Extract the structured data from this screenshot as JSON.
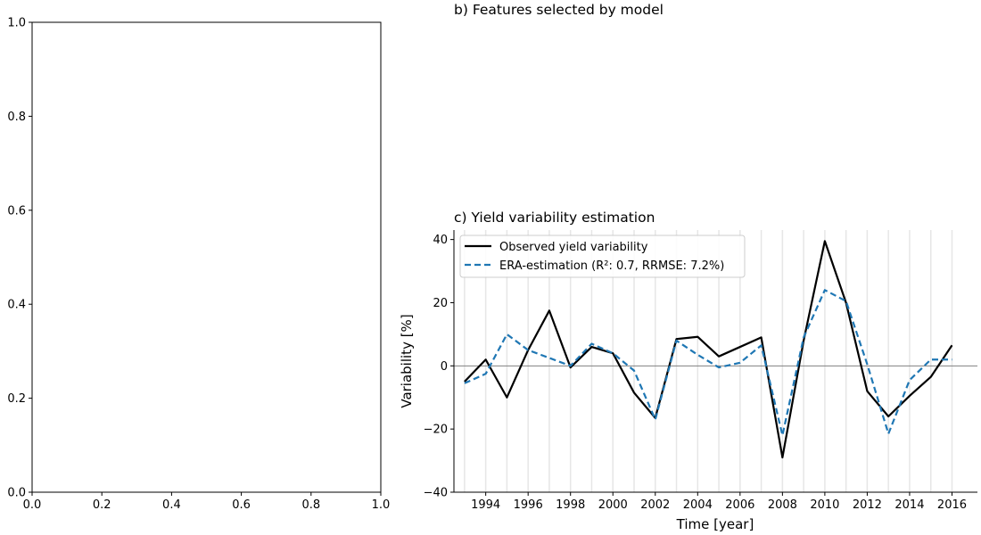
{
  "chart_data": [
    {
      "type": "line",
      "title": "",
      "xlabel": "",
      "ylabel": "",
      "xlim": [
        0.0,
        1.0
      ],
      "ylim": [
        0.0,
        1.0
      ],
      "xticks": [
        "0.0",
        "0.2",
        "0.4",
        "0.6",
        "0.8",
        "1.0"
      ],
      "yticks": [
        "0.0",
        "0.2",
        "0.4",
        "0.6",
        "0.8",
        "1.0"
      ],
      "series": []
    },
    {
      "type": "table",
      "title": "b) Features selected by model",
      "series": []
    },
    {
      "type": "line",
      "title": "c) Yield variability estimation",
      "xlabel": "Time [year]",
      "ylabel": "Variability [%]",
      "xlim": [
        1992.5,
        2017.2
      ],
      "ylim": [
        -40,
        43
      ],
      "grid": "vertical lines at each year",
      "legend": "top-left",
      "xticks": [
        "1994",
        "1996",
        "1998",
        "2000",
        "2002",
        "2004",
        "2006",
        "2008",
        "2010",
        "2012",
        "2014",
        "2016"
      ],
      "yticks": [
        "40",
        "20",
        "0",
        "−20",
        "−40"
      ],
      "x": [
        1993,
        1994,
        1995,
        1996,
        1997,
        1998,
        1999,
        2000,
        2001,
        2002,
        2003,
        2004,
        2005,
        2006,
        2007,
        2008,
        2009,
        2010,
        2011,
        2012,
        2013,
        2014,
        2015,
        2016
      ],
      "series": [
        {
          "name": "Observed yield variability",
          "color": "#000000",
          "dash": "solid",
          "values": [
            -5,
            2,
            -10,
            5,
            17.5,
            -0.5,
            6,
            4,
            -8.5,
            -16.5,
            8.5,
            9.2,
            3,
            6,
            9,
            -29,
            8,
            39.5,
            20,
            -8,
            -16,
            -9.5,
            -3.5,
            6.5
          ]
        },
        {
          "name": "ERA-estimation (R²: 0.7, RRMSE: 7.2%)",
          "color": "#1f77b4",
          "dash": "dashed",
          "values": [
            -5.5,
            -2.5,
            10,
            5,
            2.5,
            0,
            7,
            4,
            -1.5,
            -17,
            8,
            3.5,
            -0.5,
            1,
            6.5,
            -22,
            9,
            24,
            20.5,
            0.5,
            -21.5,
            -4.5,
            2,
            2
          ]
        }
      ]
    }
  ]
}
